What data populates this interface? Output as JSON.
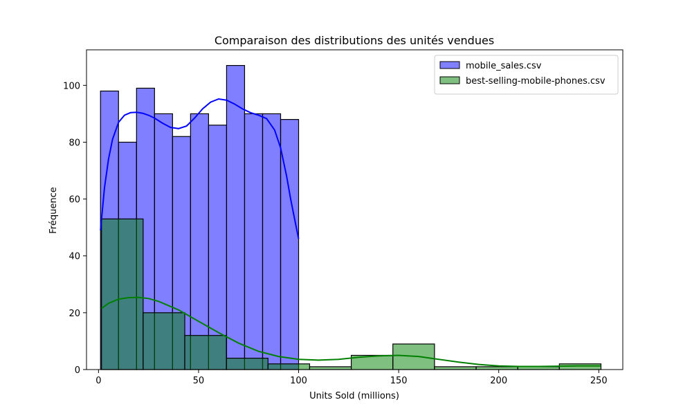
{
  "chart_data": {
    "type": "histogram",
    "title": "Comparaison des distributions des unités vendues",
    "xlabel": "Units Sold (millions)",
    "ylabel": "Fréquence",
    "xlim": [
      -6,
      262
    ],
    "ylim": [
      0,
      112.5
    ],
    "x_ticks": [
      0,
      50,
      100,
      150,
      200,
      250
    ],
    "y_ticks": [
      0,
      20,
      40,
      60,
      80,
      100
    ],
    "legend_position": "top-right",
    "series": [
      {
        "name": "mobile_sales.csv",
        "color": "#0000ff",
        "fill_opacity": 0.5,
        "kde_color": "#0000ff",
        "bin_edges": [
          1,
          10,
          19,
          28,
          37,
          46,
          55,
          64,
          73,
          82,
          91,
          100
        ],
        "counts": [
          98,
          80,
          99,
          90,
          82,
          90,
          86,
          107,
          90,
          90,
          88
        ],
        "kde_x": [
          1,
          3,
          5,
          7,
          10,
          13,
          16,
          19,
          22,
          25,
          28,
          32,
          36,
          40,
          44,
          48,
          52,
          56,
          60,
          64,
          68,
          72,
          76,
          80,
          84,
          88,
          91,
          94,
          96,
          98,
          100
        ],
        "kde_y": [
          49,
          64,
          74,
          81,
          87,
          89.5,
          90.4,
          90.5,
          90.2,
          89.5,
          88.5,
          86.7,
          85.2,
          84.8,
          85.7,
          88.5,
          91.7,
          94.1,
          95.2,
          94.8,
          93.4,
          91.7,
          90.4,
          89.5,
          88.3,
          84.3,
          78,
          68,
          60,
          53,
          46
        ]
      },
      {
        "name": "best-selling-mobile-phones.csv",
        "color": "#008000",
        "fill_opacity": 0.5,
        "kde_color": "#008000",
        "bin_edges": [
          1.5,
          22.3,
          43.1,
          63.9,
          84.7,
          105.5,
          126.3,
          147.1,
          167.9,
          188.7,
          209.5,
          230.3,
          251.1
        ],
        "counts": [
          53,
          20,
          12,
          4,
          2,
          1,
          5,
          9,
          1,
          1,
          1,
          2
        ],
        "kde_x": [
          1.5,
          5,
          10,
          15,
          20,
          25,
          30,
          40,
          50,
          60,
          70,
          80,
          90,
          100,
          110,
          120,
          130,
          140,
          150,
          160,
          170,
          180,
          190,
          200,
          210,
          220,
          230,
          240,
          251
        ],
        "kde_y": [
          21.5,
          23.3,
          24.8,
          25.3,
          25.4,
          25.0,
          24.0,
          21.0,
          17.0,
          13.0,
          9.3,
          6.4,
          4.6,
          3.6,
          3.3,
          3.6,
          4.3,
          4.8,
          5.0,
          4.6,
          3.6,
          2.6,
          1.8,
          1.3,
          1.1,
          1.1,
          1.2,
          1.3,
          1.3
        ]
      }
    ]
  }
}
